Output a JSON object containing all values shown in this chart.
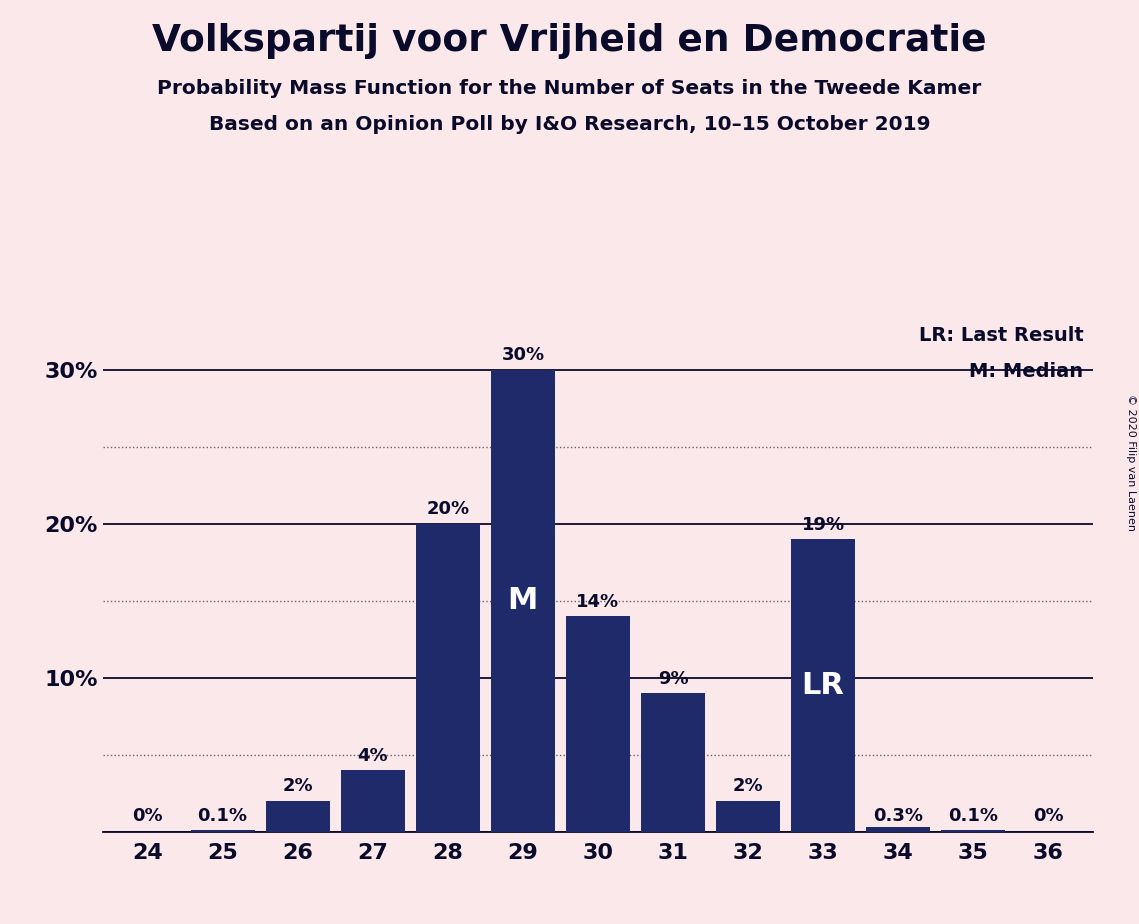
{
  "title": "Volkspartij voor Vrijheid en Democratie",
  "subtitle1": "Probability Mass Function for the Number of Seats in the Tweede Kamer",
  "subtitle2": "Based on an Opinion Poll by I&O Research, 10–15 October 2019",
  "copyright": "© 2020 Filip van Laenen",
  "categories": [
    24,
    25,
    26,
    27,
    28,
    29,
    30,
    31,
    32,
    33,
    34,
    35,
    36
  ],
  "values": [
    0.0,
    0.1,
    2.0,
    4.0,
    20.0,
    30.0,
    14.0,
    9.0,
    2.0,
    19.0,
    0.3,
    0.1,
    0.0
  ],
  "labels": [
    "0%",
    "0.1%",
    "2%",
    "4%",
    "20%",
    "30%",
    "14%",
    "9%",
    "2%",
    "19%",
    "0.3%",
    "0.1%",
    "0%"
  ],
  "bar_color": "#1F2A6B",
  "background_color": "#FAE8EA",
  "title_color": "#0A0A2A",
  "dotted_grid_color": "#666666",
  "solid_line_color": "#0A0A2A",
  "median_bar": 29,
  "last_result_bar": 33,
  "ylim": [
    0,
    33
  ],
  "solid_yticks": [
    0,
    10,
    20,
    30
  ],
  "solid_ytick_labels": [
    "",
    "10%",
    "20%",
    "30%"
  ],
  "dotted_yticks": [
    5,
    15,
    25
  ],
  "legend_lr": "LR: Last Result",
  "legend_m": "M: Median",
  "title_fontsize": 27,
  "subtitle_fontsize": 14.5,
  "label_fontsize": 13,
  "tick_fontsize": 16,
  "inside_label_fontsize": 22
}
